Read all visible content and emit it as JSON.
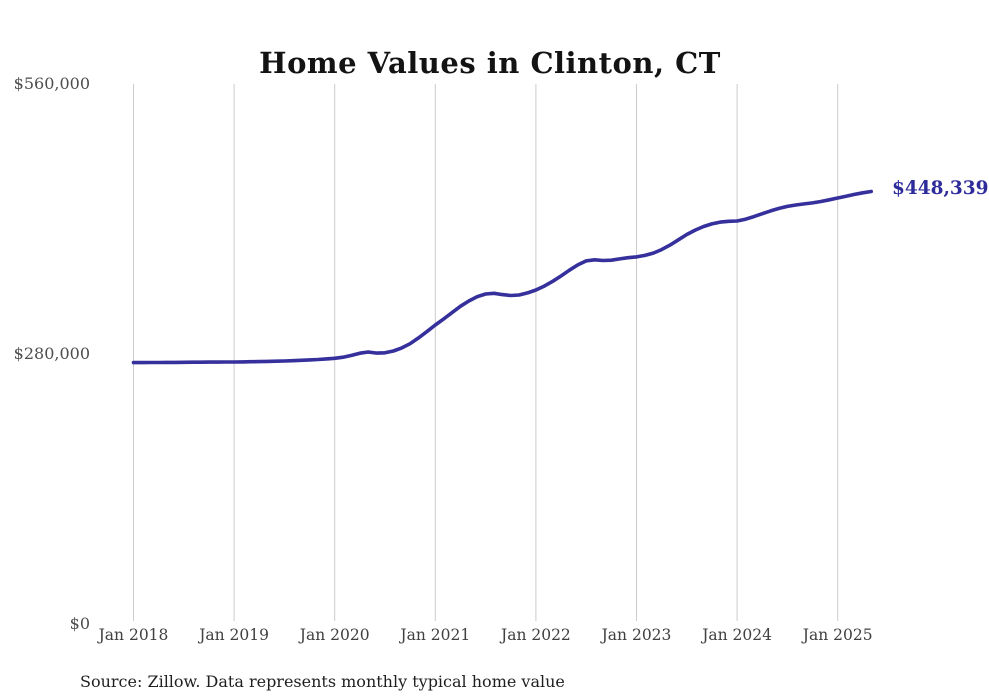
{
  "title": "Home Values in Clinton, CT",
  "source_note": "Source: Zillow. Data represents monthly typical home value",
  "latest_value_label": "$448,339",
  "colors": {
    "line": "#35309b",
    "value_label": "#2e2b9a",
    "grid": "#cccccc",
    "title_text": "#131313",
    "y_axis_text": "#4d4d4d",
    "x_axis_text": "#404040",
    "source_text": "#1f1f1f",
    "background": "#ffffff"
  },
  "chart_data": {
    "type": "line",
    "title": "Home Values in Clinton, CT",
    "xlabel": "",
    "ylabel": "",
    "ylim": [
      0,
      560000
    ],
    "grid": "vertical-only",
    "legend": "none",
    "y_ticks": [
      {
        "value": 560000,
        "label": "$560,000"
      },
      {
        "value": 280000,
        "label": "$280,000"
      },
      {
        "value": 0,
        "label": "$0"
      }
    ],
    "x_tick_labels": [
      "Jan 2018",
      "Jan 2019",
      "Jan 2020",
      "Jan 2021",
      "Jan 2022",
      "Jan 2023",
      "Jan 2024",
      "Jan 2025"
    ],
    "series": [
      {
        "name": "Monthly typical home value",
        "start_month": "2018-01",
        "end_month": "2025-05",
        "frequency": "monthly",
        "values": [
          270500,
          270560,
          270620,
          270680,
          270740,
          270800,
          270860,
          270920,
          270980,
          271040,
          271100,
          271150,
          271200,
          271300,
          271450,
          271600,
          271800,
          272000,
          272250,
          272550,
          272900,
          273300,
          273750,
          274350,
          275000,
          276200,
          278000,
          280300,
          281600,
          280400,
          280700,
          282600,
          285800,
          290200,
          296200,
          302800,
          309600,
          316000,
          322500,
          329000,
          334500,
          339000,
          341800,
          342500,
          341200,
          340300,
          340800,
          343000,
          346000,
          350000,
          355000,
          360500,
          366500,
          372000,
          376200,
          377300,
          376600,
          376900,
          378300,
          379500,
          380400,
          381900,
          384300,
          387900,
          392600,
          398100,
          403600,
          408200,
          411900,
          414700,
          416500,
          417300,
          417700,
          419500,
          422200,
          425200,
          428200,
          430800,
          432800,
          434300,
          435400,
          436500,
          437900,
          439700,
          441600,
          443400,
          445300,
          447000,
          448339
        ]
      }
    ],
    "end_value": 448339,
    "end_value_label": "$448,339"
  }
}
